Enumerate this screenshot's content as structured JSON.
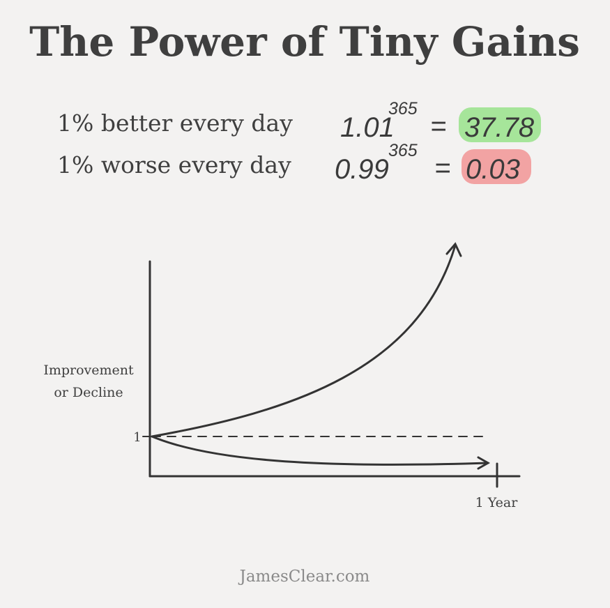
{
  "header": {
    "title": "The Power of Tiny Gains"
  },
  "equations": [
    {
      "label": "1% better every day",
      "base": "1.01",
      "exponent": "365",
      "equals": "=",
      "result": "37.78"
    },
    {
      "label": "1% worse every day",
      "base": "0.99",
      "exponent": "365",
      "equals": "=",
      "result": "0.03"
    }
  ],
  "graph": {
    "y_axis_label": [
      "Improvement",
      "or Decline"
    ],
    "y_tick_label": "1",
    "x_tick_label": "1 Year"
  },
  "footer": {
    "text": "JamesClear.com"
  }
}
